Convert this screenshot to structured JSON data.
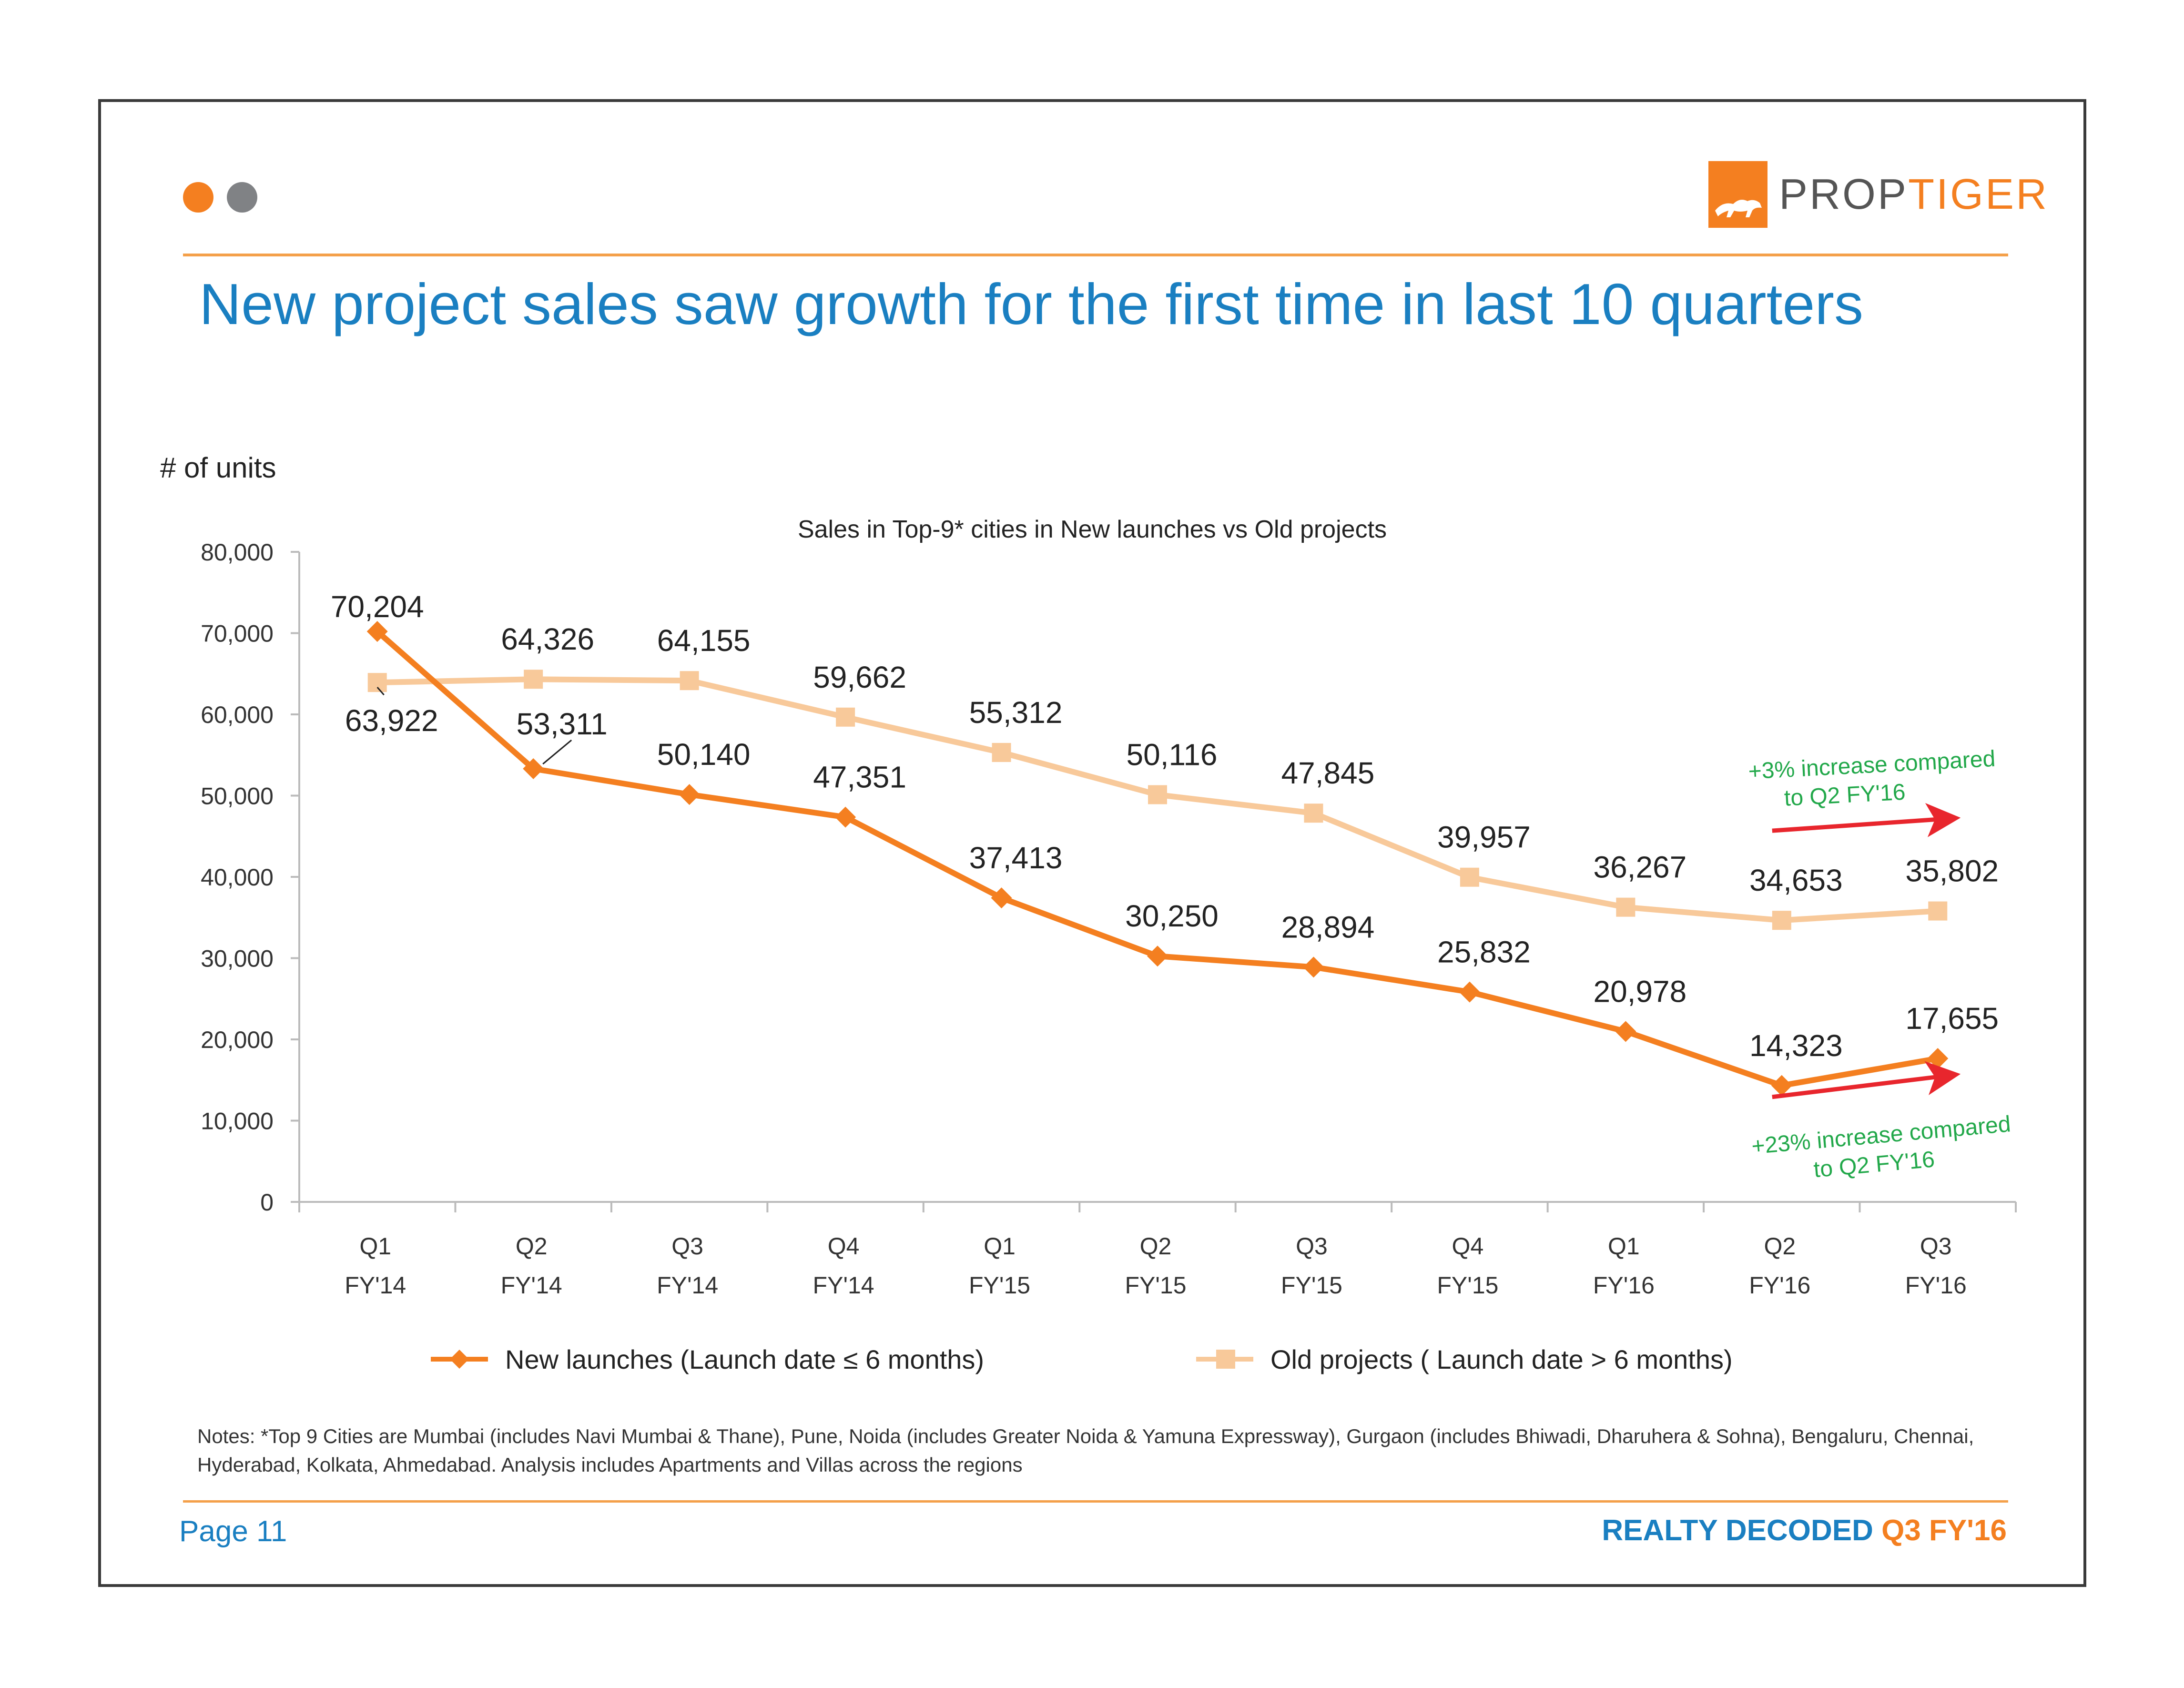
{
  "header": {
    "logo_prefix": "PROP",
    "logo_suffix": "TIGER",
    "title": "New project sales saw growth for the first time in last 10 quarters"
  },
  "colors": {
    "new_launches": "#f47f20",
    "old_projects": "#f8c99a",
    "title_blue": "#1a7fc1",
    "annotation_green": "#22a84a",
    "arrow_red": "#e8262d"
  },
  "chart_data": {
    "type": "line",
    "title": "Sales in Top-9* cities in New launches vs Old projects",
    "ylabel": "# of units",
    "xlabel": "",
    "ylim": [
      0,
      80000
    ],
    "yticks": [
      0,
      10000,
      20000,
      30000,
      40000,
      50000,
      60000,
      70000,
      80000
    ],
    "ytick_labels": [
      "0",
      "10,000",
      "20,000",
      "30,000",
      "40,000",
      "50,000",
      "60,000",
      "70,000",
      "80,000"
    ],
    "categories": [
      {
        "q": "Q1",
        "fy": "FY'14"
      },
      {
        "q": "Q2",
        "fy": "FY'14"
      },
      {
        "q": "Q3",
        "fy": "FY'14"
      },
      {
        "q": "Q4",
        "fy": "FY'14"
      },
      {
        "q": "Q1",
        "fy": "FY'15"
      },
      {
        "q": "Q2",
        "fy": "FY'15"
      },
      {
        "q": "Q3",
        "fy": "FY'15"
      },
      {
        "q": "Q4",
        "fy": "FY'15"
      },
      {
        "q": "Q1",
        "fy": "FY'16"
      },
      {
        "q": "Q2",
        "fy": "FY'16"
      },
      {
        "q": "Q3",
        "fy": "FY'16"
      }
    ],
    "series": [
      {
        "name": "New launches (Launch date ≤ 6 months)",
        "key": "new",
        "values": [
          70204,
          53311,
          50140,
          47351,
          37413,
          30250,
          28894,
          25832,
          20978,
          14323,
          17655
        ],
        "labels": [
          "70,204",
          "53,311",
          "50,140",
          "47,351",
          "37,413",
          "30,250",
          "28,894",
          "25,832",
          "20,978",
          "14,323",
          "17,655"
        ]
      },
      {
        "name": "Old projects ( Launch date > 6 months)",
        "key": "old",
        "values": [
          63922,
          64326,
          64155,
          59662,
          55312,
          50116,
          47845,
          39957,
          36267,
          34653,
          35802
        ],
        "labels": [
          "63,922",
          "64,326",
          "64,155",
          "59,662",
          "55,312",
          "50,116",
          "47,845",
          "39,957",
          "36,267",
          "34,653",
          "35,802"
        ]
      }
    ],
    "legend_position": "bottom",
    "annotations": [
      {
        "series": "old",
        "line1": "+3% increase compared",
        "line2": "to  Q2 FY'16"
      },
      {
        "series": "new",
        "line1": "+23% increase compared",
        "line2": "to Q2 FY'16"
      }
    ]
  },
  "notes": "Notes: *Top 9 Cities are Mumbai (includes Navi Mumbai & Thane), Pune, Noida (includes Greater Noida & Yamuna Expressway), Gurgaon (includes Bhiwadi, Dharuhera & Sohna), Bengaluru, Chennai, Hyderabad, Kolkata, Ahmedabad. Analysis includes Apartments and Villas across the regions",
  "footer": {
    "page": "Page 11",
    "brand": "REALTY DECODED",
    "edition": "Q3 FY'16"
  }
}
